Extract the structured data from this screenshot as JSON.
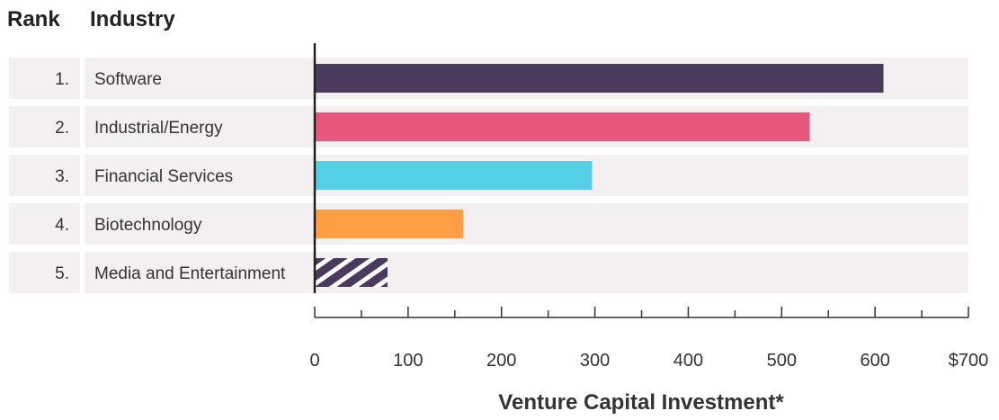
{
  "chart_data": {
    "type": "bar",
    "orientation": "horizontal",
    "columns": {
      "rank": "Rank",
      "industry": "Industry"
    },
    "ranks": [
      "1.",
      "2.",
      "3.",
      "4.",
      "5."
    ],
    "categories": [
      "Software",
      "Industrial/Energy",
      "Financial Services",
      "Biotechnology",
      "Media and Entertainment"
    ],
    "values": [
      609,
      530,
      297,
      159,
      78
    ],
    "colors": [
      "#4a3a5e",
      "#e9567c",
      "#55cfe4",
      "#ff9e45",
      "#4a3a5e"
    ],
    "patterns": [
      "solid",
      "solid",
      "solid",
      "solid",
      "hatched"
    ],
    "xlabel": "Venture Capital Investment*",
    "xlim": [
      0,
      700
    ],
    "x_ticks": [
      0,
      100,
      200,
      300,
      400,
      500,
      600,
      700
    ],
    "x_tick_labels": [
      "0",
      "100",
      "200",
      "300",
      "400",
      "500",
      "600",
      "$700"
    ],
    "row_background": "#f4f0f2"
  }
}
